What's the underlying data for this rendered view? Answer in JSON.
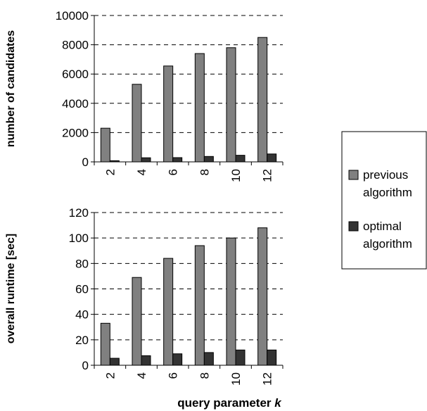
{
  "chart_data": [
    {
      "type": "bar",
      "categories": [
        "2",
        "4",
        "6",
        "8",
        "10",
        "12"
      ],
      "series": [
        {
          "name": "previous algorithm",
          "values": [
            2300,
            5300,
            6550,
            7400,
            7800,
            8500
          ]
        },
        {
          "name": "optimal algorithm",
          "values": [
            80,
            280,
            290,
            370,
            450,
            540
          ]
        }
      ],
      "title": "",
      "xlabel": "",
      "ylabel": "number of candidates",
      "ylim": [
        0,
        10000
      ],
      "yticks": [
        "0",
        "2000",
        "4000",
        "6000",
        "8000",
        "10000"
      ],
      "grid": "horizontal dashed",
      "legend": "right"
    },
    {
      "type": "bar",
      "categories": [
        "2",
        "4",
        "6",
        "8",
        "10",
        "12"
      ],
      "series": [
        {
          "name": "previous algorithm",
          "values": [
            33,
            69,
            84,
            94,
            100,
            108
          ]
        },
        {
          "name": "optimal algorithm",
          "values": [
            5.5,
            7.5,
            9,
            10,
            12,
            12
          ]
        }
      ],
      "title": "",
      "xlabel": "query parameter k",
      "xlabel_text": "query parameter ",
      "xlabel_var": "k",
      "ylabel": "overall runtime [sec]",
      "ylim": [
        0,
        120
      ],
      "yticks": [
        "0",
        "20",
        "40",
        "60",
        "80",
        "100",
        "120"
      ],
      "grid": "horizontal dashed",
      "legend": "right"
    }
  ],
  "legend": {
    "items": [
      {
        "line1": "previous",
        "line2": "algorithm",
        "color": "#808080"
      },
      {
        "line1": "optimal",
        "line2": "algorithm",
        "color": "#333333"
      }
    ]
  },
  "colors": {
    "previous": "#808080",
    "optimal": "#333333"
  }
}
